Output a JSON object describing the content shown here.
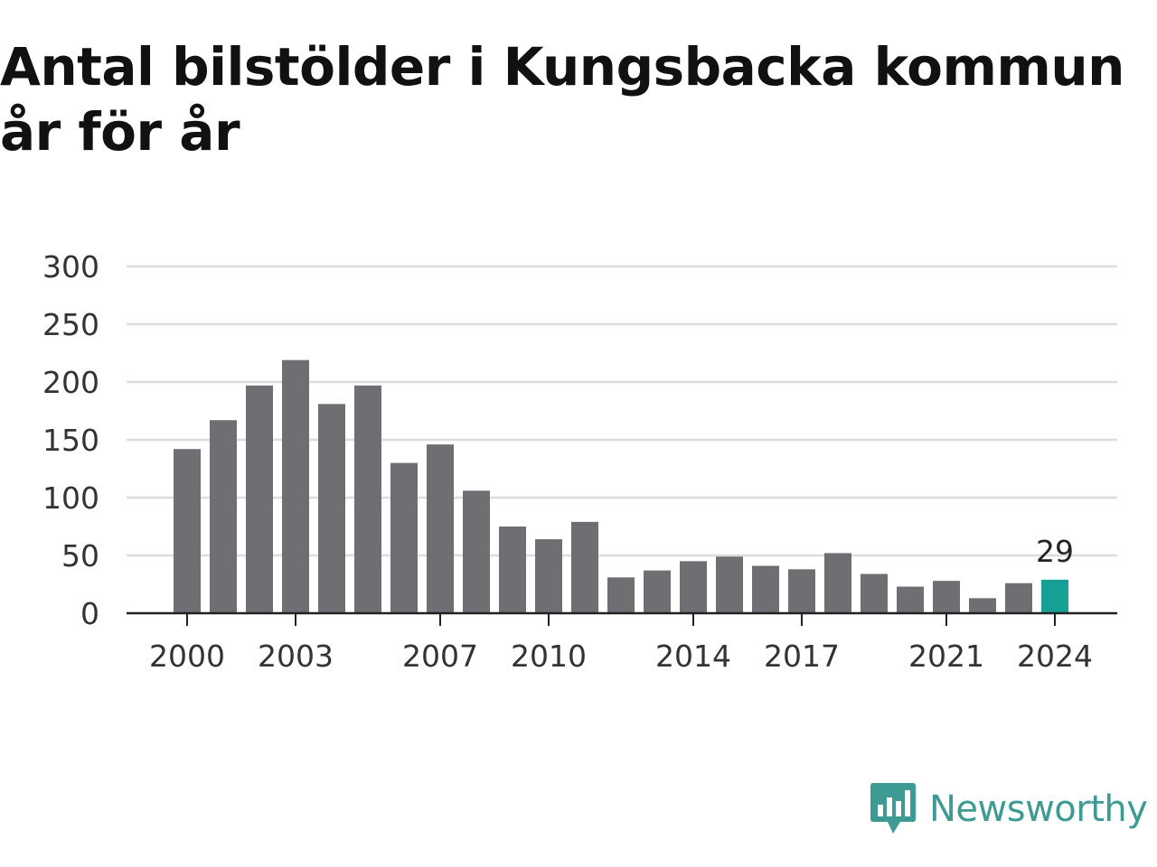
{
  "title_line1": "Antal bilstölder i Kungsbacka kommun",
  "title_line2": "år för år",
  "brand": {
    "name": "Newsworthy",
    "color": "#3d9b93",
    "icon": "newsworthy-logo-icon"
  },
  "colors": {
    "bar": "#6f6e73",
    "highlight": "#17a095",
    "grid": "#dddddd",
    "axis": "#222222"
  },
  "chart_data": {
    "type": "bar",
    "categories": [
      "2000",
      "2001",
      "2002",
      "2003",
      "2004",
      "2005",
      "2006",
      "2007",
      "2008",
      "2009",
      "2010",
      "2011",
      "2012",
      "2013",
      "2014",
      "2015",
      "2016",
      "2017",
      "2018",
      "2019",
      "2020",
      "2021",
      "2022",
      "2023",
      "2024"
    ],
    "values": [
      142,
      167,
      197,
      219,
      181,
      197,
      130,
      146,
      106,
      75,
      64,
      79,
      31,
      37,
      45,
      49,
      41,
      38,
      52,
      34,
      23,
      28,
      13,
      26,
      29
    ],
    "x_tick_labels": [
      "2000",
      "2003",
      "2007",
      "2010",
      "2014",
      "2017",
      "2021",
      "2024"
    ],
    "y_ticks": [
      0,
      50,
      100,
      150,
      200,
      250,
      300
    ],
    "ylim": [
      0,
      300
    ],
    "highlight_category": "2024",
    "data_labels": [
      {
        "category": "2024",
        "text": "29"
      }
    ],
    "title": "Antal bilstölder i Kungsbacka kommun år för år",
    "xlabel": "",
    "ylabel": "",
    "grid": true,
    "legend": "none"
  }
}
